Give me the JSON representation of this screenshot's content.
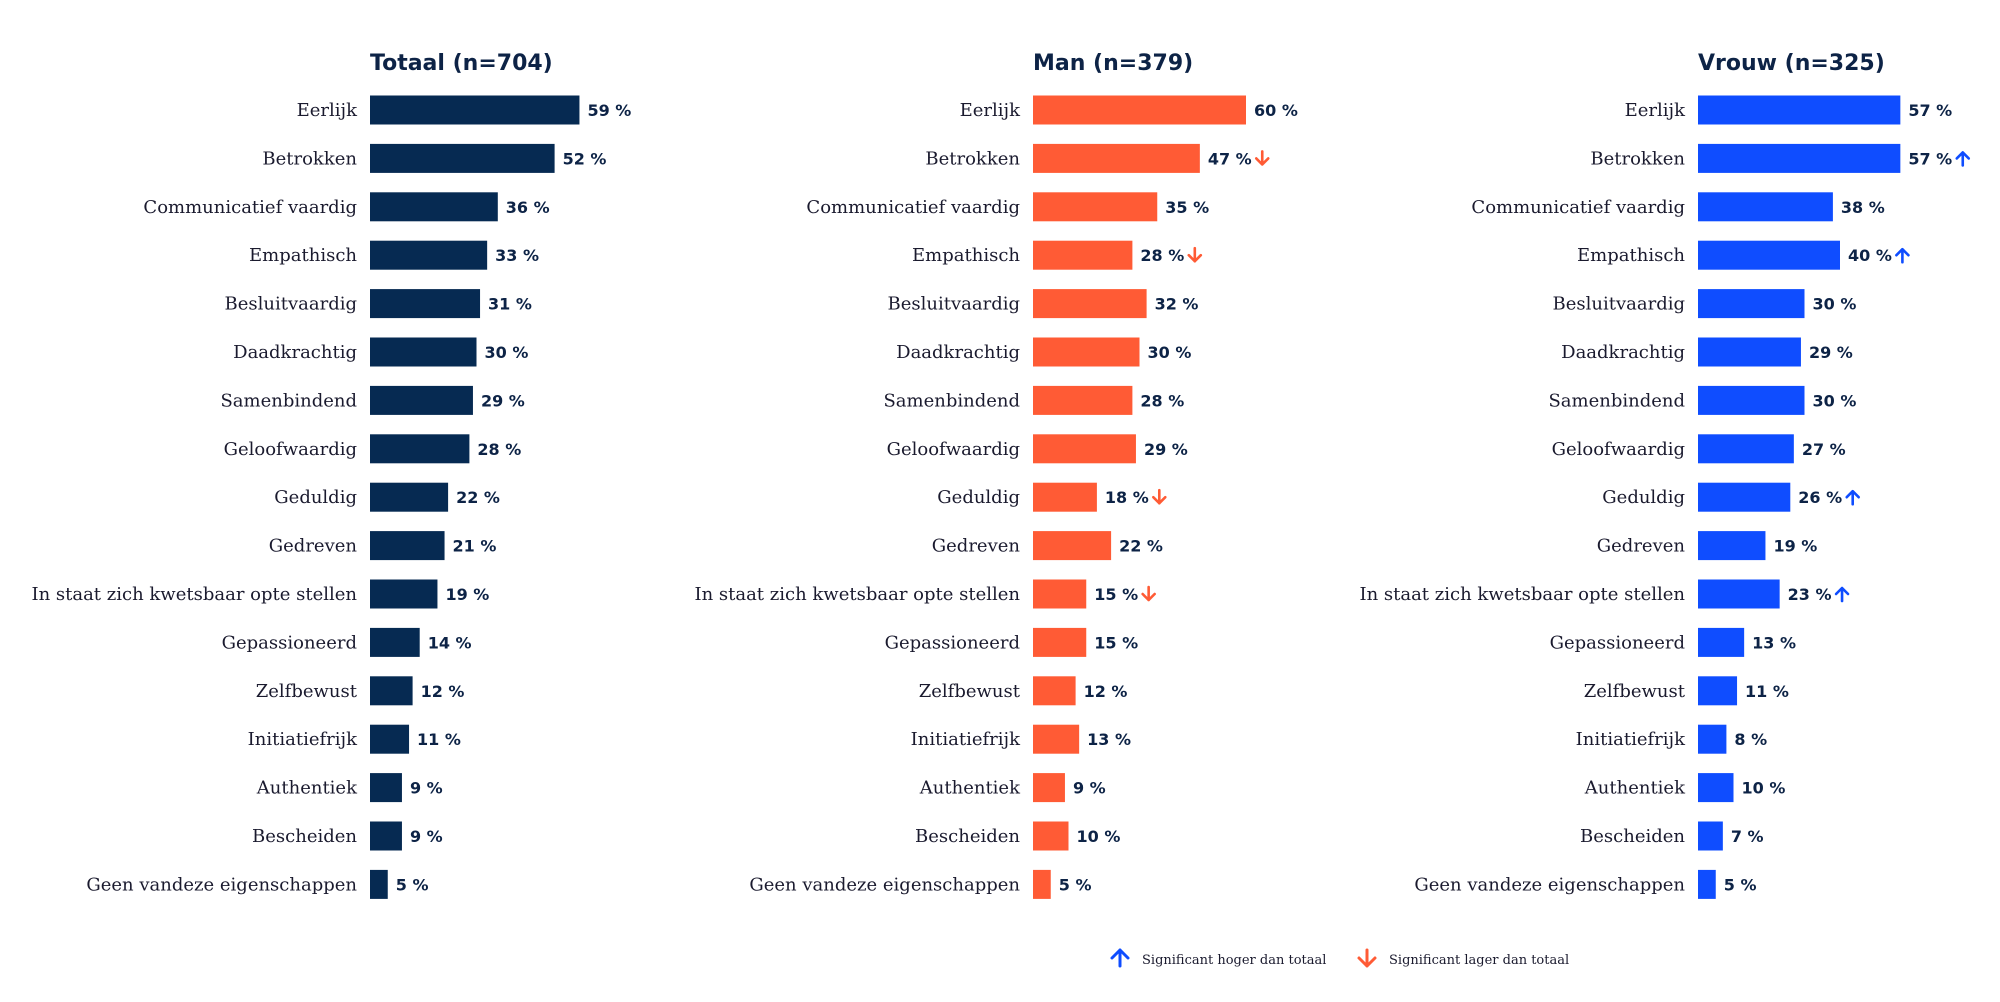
{
  "chart_data": [
    {
      "type": "bar",
      "title": "Totaal (n=704)",
      "color": "#062a52",
      "categories": [
        "Eerlijk",
        "Betrokken",
        "Communicatief vaardig",
        "Empathisch",
        "Besluitvaardig",
        "Daadkrachtig",
        "Samenbindend",
        "Geloofwaardig",
        "Geduldig",
        "Gedreven",
        "In staat zich kwetsbaar opte stellen",
        "Gepassioneerd",
        "Zelfbewust",
        "Initiatiefrijk",
        "Authentiek",
        "Bescheiden",
        "Geen vandeze eigenschappen"
      ],
      "values": [
        59,
        52,
        36,
        33,
        31,
        30,
        29,
        28,
        22,
        21,
        19,
        14,
        12,
        11,
        9,
        9,
        5
      ],
      "value_labels": [
        "59 %",
        "52 %",
        "36 %",
        "33 %",
        "31 %",
        "30 %",
        "29 %",
        "28 %",
        "22 %",
        "21 %",
        "19 %",
        "14 %",
        "12 %",
        "11 %",
        "9 %",
        "9 %",
        "5 %"
      ],
      "significance": [
        "",
        "",
        "",
        "",
        "",
        "",
        "",
        "",
        "",
        "",
        "",
        "",
        "",
        "",
        "",
        "",
        ""
      ]
    },
    {
      "type": "bar",
      "title": "Man (n=379)",
      "color": "#ff5b35",
      "categories": [
        "Eerlijk",
        "Betrokken",
        "Communicatief vaardig",
        "Empathisch",
        "Besluitvaardig",
        "Daadkrachtig",
        "Samenbindend",
        "Geloofwaardig",
        "Geduldig",
        "Gedreven",
        "In staat zich kwetsbaar opte stellen",
        "Gepassioneerd",
        "Zelfbewust",
        "Initiatiefrijk",
        "Authentiek",
        "Bescheiden",
        "Geen vandeze eigenschappen"
      ],
      "values": [
        60,
        47,
        35,
        28,
        32,
        30,
        28,
        29,
        18,
        22,
        15,
        15,
        12,
        13,
        9,
        10,
        5
      ],
      "value_labels": [
        "60 %",
        "47 %",
        "35 %",
        "28 %",
        "32 %",
        "30 %",
        "28 %",
        "29 %",
        "18 %",
        "22 %",
        "15 %",
        "15 %",
        "12 %",
        "13 %",
        "9 %",
        "10 %",
        "5 %"
      ],
      "significance": [
        "",
        "down",
        "",
        "down",
        "",
        "",
        "",
        "",
        "down",
        "",
        "down",
        "",
        "",
        "",
        "",
        "",
        ""
      ]
    },
    {
      "type": "bar",
      "title": "Vrouw (n=325)",
      "color": "#0f4dff",
      "categories": [
        "Eerlijk",
        "Betrokken",
        "Communicatief vaardig",
        "Empathisch",
        "Besluitvaardig",
        "Daadkrachtig",
        "Samenbindend",
        "Geloofwaardig",
        "Geduldig",
        "Gedreven",
        "In staat zich kwetsbaar opte stellen",
        "Gepassioneerd",
        "Zelfbewust",
        "Initiatiefrijk",
        "Authentiek",
        "Bescheiden",
        "Geen vandeze eigenschappen"
      ],
      "values": [
        57,
        57,
        38,
        40,
        30,
        29,
        30,
        27,
        26,
        19,
        23,
        13,
        11,
        8,
        10,
        7,
        5
      ],
      "value_labels": [
        "57 %",
        "57 %",
        "38 %",
        "40 %",
        "30 %",
        "29 %",
        "30 %",
        "27 %",
        "26 %",
        "19 %",
        "23 %",
        "13 %",
        "11 %",
        "8 %",
        "10 %",
        "7 %",
        "5 %"
      ],
      "significance": [
        "",
        "up",
        "",
        "up",
        "",
        "",
        "",
        "",
        "up",
        "",
        "up",
        "",
        "",
        "",
        "",
        "",
        ""
      ]
    }
  ],
  "legend": {
    "up_label": "Significant hoger dan totaal",
    "up_color": "#0f4dff",
    "down_label": "Significant lager dan totaal",
    "down_color": "#ff5b35"
  }
}
